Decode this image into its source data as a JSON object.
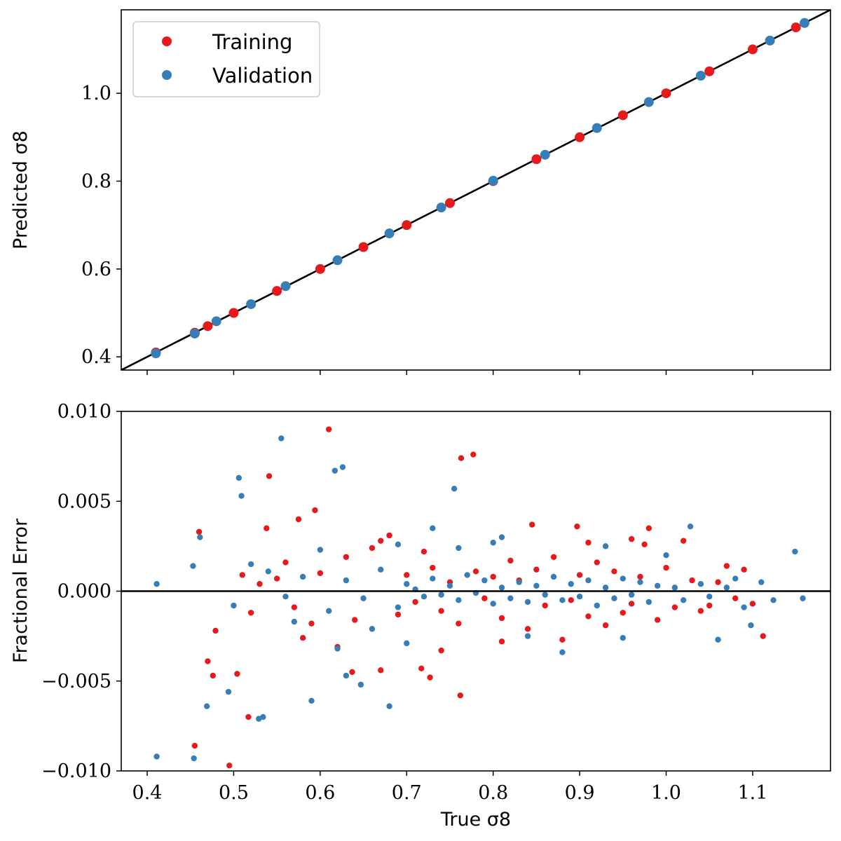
{
  "colors": {
    "training": "#e41a1c",
    "validation": "#377eb8",
    "reference": "#000000"
  },
  "legend": {
    "placement": "top-left",
    "entries": [
      "Training",
      "Validation"
    ]
  },
  "chart_data": [
    {
      "type": "scatter",
      "title": "",
      "ylabel": "Predicted σ8",
      "xlim": [
        0.37,
        1.19
      ],
      "ylim": [
        0.37,
        1.19
      ],
      "yticks": [
        0.4,
        0.6,
        0.8,
        1.0
      ],
      "ytick_labels": [
        "0.4",
        "0.6",
        "0.8",
        "1.0"
      ],
      "xticks": [
        0.4,
        0.5,
        0.6,
        0.7,
        0.8,
        0.9,
        1.0,
        1.1
      ],
      "reference_line": "y = x",
      "series": [
        {
          "name": "Training",
          "points": [
            [
              0.41,
              0.41
            ],
            [
              0.455,
              0.455
            ],
            [
              0.47,
              0.47
            ],
            [
              0.5,
              0.5
            ],
            [
              0.55,
              0.55
            ],
            [
              0.6,
              0.6
            ],
            [
              0.65,
              0.65
            ],
            [
              0.7,
              0.7
            ],
            [
              0.75,
              0.75
            ],
            [
              0.8,
              0.8
            ],
            [
              0.85,
              0.85
            ],
            [
              0.9,
              0.9
            ],
            [
              0.95,
              0.95
            ],
            [
              1.0,
              1.0
            ],
            [
              1.05,
              1.05
            ],
            [
              1.1,
              1.1
            ],
            [
              1.15,
              1.15
            ]
          ]
        },
        {
          "name": "Validation",
          "points": [
            [
              0.41,
              0.408
            ],
            [
              0.455,
              0.453
            ],
            [
              0.48,
              0.481
            ],
            [
              0.52,
              0.52
            ],
            [
              0.56,
              0.561
            ],
            [
              0.62,
              0.62
            ],
            [
              0.68,
              0.681
            ],
            [
              0.74,
              0.74
            ],
            [
              0.8,
              0.801
            ],
            [
              0.86,
              0.86
            ],
            [
              0.92,
              0.921
            ],
            [
              0.98,
              0.98
            ],
            [
              1.04,
              1.04
            ],
            [
              1.12,
              1.12
            ],
            [
              1.16,
              1.16
            ]
          ]
        }
      ]
    },
    {
      "type": "scatter",
      "title": "",
      "xlabel": "True σ8",
      "ylabel": "Fractional Error",
      "xlim": [
        0.37,
        1.19
      ],
      "ylim": [
        -0.01,
        0.01
      ],
      "xticks": [
        0.4,
        0.5,
        0.6,
        0.7,
        0.8,
        0.9,
        1.0,
        1.1
      ],
      "xtick_labels": [
        "0.4",
        "0.5",
        "0.6",
        "0.7",
        "0.8",
        "0.9",
        "1.0",
        "1.1"
      ],
      "yticks": [
        -0.01,
        -0.005,
        0.0,
        0.005,
        0.01
      ],
      "ytick_labels": [
        "−0.010",
        "−0.005",
        "0.000",
        "0.005",
        "0.010"
      ],
      "reference_line": "y = 0",
      "series": [
        {
          "name": "Training",
          "points": [
            [
              0.61,
              0.009
            ],
            [
              0.763,
              0.0074
            ],
            [
              0.777,
              0.0076
            ],
            [
              0.541,
              0.0064
            ],
            [
              0.46,
              0.0033
            ],
            [
              0.495,
              -0.0097
            ],
            [
              0.455,
              -0.0086
            ],
            [
              0.517,
              -0.007
            ],
            [
              0.476,
              -0.0047
            ],
            [
              0.762,
              -0.0058
            ],
            [
              0.504,
              -0.0046
            ],
            [
              0.47,
              -0.0039
            ],
            [
              0.479,
              -0.0022
            ],
            [
              0.538,
              0.0035
            ],
            [
              0.575,
              0.004
            ],
            [
              0.594,
              0.0045
            ],
            [
              0.637,
              -0.0045
            ],
            [
              0.67,
              -0.0044
            ],
            [
              0.717,
              -0.0043
            ],
            [
              0.727,
              -0.0048
            ],
            [
              0.845,
              0.0037
            ],
            [
              0.897,
              0.0036
            ],
            [
              0.975,
              0.0026
            ],
            [
              1.05,
              -0.0008
            ],
            [
              1.112,
              -0.0025
            ],
            [
              1.07,
              0.0014
            ],
            [
              1.02,
              0.0028
            ],
            [
              0.95,
              -0.0012
            ],
            [
              0.88,
              -0.0027
            ],
            [
              0.82,
              0.0017
            ],
            [
              0.72,
              0.0022
            ],
            [
              0.67,
              0.0028
            ],
            [
              0.64,
              -0.0016
            ],
            [
              0.6,
              0.001
            ],
            [
              0.57,
              -0.0009
            ],
            [
              0.55,
              0.0007
            ],
            [
              0.52,
              -0.0012
            ],
            [
              0.53,
              0.0004
            ],
            [
              0.58,
              -0.0026
            ],
            [
              0.62,
              -0.0031
            ],
            [
              0.66,
              0.0024
            ],
            [
              0.69,
              -0.0013
            ],
            [
              0.7,
              0.0009
            ],
            [
              0.71,
              -0.0006
            ],
            [
              0.73,
              0.0013
            ],
            [
              0.74,
              -0.0011
            ],
            [
              0.75,
              0.0005
            ],
            [
              0.76,
              -0.0018
            ],
            [
              0.78,
              0.0011
            ],
            [
              0.79,
              -0.0004
            ],
            [
              0.8,
              0.0008
            ],
            [
              0.81,
              -0.0015
            ],
            [
              0.83,
              0.0006
            ],
            [
              0.84,
              -0.0021
            ],
            [
              0.85,
              0.0012
            ],
            [
              0.86,
              -0.0008
            ],
            [
              0.87,
              0.0019
            ],
            [
              0.89,
              -0.0005
            ],
            [
              0.9,
              0.0009
            ],
            [
              0.91,
              -0.0014
            ],
            [
              0.92,
              0.0016
            ],
            [
              0.93,
              -0.0019
            ],
            [
              0.94,
              0.0011
            ],
            [
              0.96,
              -0.0007
            ],
            [
              0.97,
              0.0008
            ],
            [
              0.99,
              -0.0016
            ],
            [
              1.0,
              0.0013
            ],
            [
              1.01,
              -0.0009
            ],
            [
              1.03,
              0.0006
            ],
            [
              1.04,
              -0.0011
            ],
            [
              1.06,
              0.0005
            ],
            [
              1.08,
              -0.0004
            ],
            [
              1.09,
              0.0012
            ],
            [
              1.1,
              -0.0007
            ],
            [
              0.98,
              0.0035
            ],
            [
              0.96,
              0.0029
            ],
            [
              0.91,
              0.0027
            ],
            [
              0.81,
              -0.0028
            ],
            [
              0.74,
              -0.0033
            ],
            [
              0.68,
              0.0031
            ],
            [
              0.63,
              0.0019
            ],
            [
              0.59,
              -0.0018
            ],
            [
              0.56,
              0.0016
            ],
            [
              0.51,
              0.0009
            ]
          ]
        },
        {
          "name": "Validation",
          "points": [
            [
              0.555,
              0.0085
            ],
            [
              0.626,
              0.0069
            ],
            [
              0.617,
              0.0067
            ],
            [
              0.755,
              0.0057
            ],
            [
              0.506,
              0.0063
            ],
            [
              0.509,
              0.0053
            ],
            [
              0.411,
              0.0004
            ],
            [
              0.453,
              0.0014
            ],
            [
              0.461,
              0.003
            ],
            [
              0.411,
              -0.0092
            ],
            [
              0.454,
              -0.0093
            ],
            [
              0.469,
              -0.0064
            ],
            [
              0.494,
              -0.0056
            ],
            [
              0.529,
              -0.0071
            ],
            [
              0.534,
              -0.007
            ],
            [
              0.59,
              -0.0061
            ],
            [
              0.68,
              -0.0064
            ],
            [
              0.647,
              -0.0052
            ],
            [
              0.63,
              -0.0047
            ],
            [
              1.149,
              0.0022
            ],
            [
              1.158,
              -0.0004
            ],
            [
              1.124,
              -0.0005
            ],
            [
              1.098,
              -0.0019
            ],
            [
              1.06,
              -0.0027
            ],
            [
              1.028,
              0.0036
            ],
            [
              1.0,
              0.002
            ],
            [
              0.95,
              -0.0026
            ],
            [
              0.88,
              -0.0034
            ],
            [
              0.81,
              0.003
            ],
            [
              0.73,
              0.0035
            ],
            [
              0.66,
              -0.0021
            ],
            [
              0.6,
              0.0023
            ],
            [
              0.57,
              -0.0017
            ],
            [
              0.54,
              0.0011
            ],
            [
              0.5,
              -0.0008
            ],
            [
              0.52,
              0.0015
            ],
            [
              0.56,
              -0.0003
            ],
            [
              0.58,
              0.0008
            ],
            [
              0.61,
              -0.0011
            ],
            [
              0.63,
              0.0006
            ],
            [
              0.65,
              -0.0004
            ],
            [
              0.67,
              0.0012
            ],
            [
              0.69,
              -0.0009
            ],
            [
              0.7,
              0.0004
            ],
            [
              0.71,
              0.0001
            ],
            [
              0.72,
              -0.0003
            ],
            [
              0.73,
              0.0007
            ],
            [
              0.74,
              -0.0002
            ],
            [
              0.75,
              0.0003
            ],
            [
              0.76,
              -0.0005
            ],
            [
              0.77,
              0.0009
            ],
            [
              0.78,
              -0.0001
            ],
            [
              0.79,
              0.0006
            ],
            [
              0.8,
              -0.0007
            ],
            [
              0.81,
              0.0002
            ],
            [
              0.82,
              -0.0004
            ],
            [
              0.83,
              0.0005
            ],
            [
              0.84,
              -0.0006
            ],
            [
              0.85,
              0.0003
            ],
            [
              0.86,
              -0.0002
            ],
            [
              0.87,
              0.0008
            ],
            [
              0.88,
              -0.0005
            ],
            [
              0.89,
              0.0004
            ],
            [
              0.9,
              -0.0003
            ],
            [
              0.91,
              0.0006
            ],
            [
              0.92,
              -0.0008
            ],
            [
              0.93,
              0.0002
            ],
            [
              0.94,
              -0.0004
            ],
            [
              0.95,
              0.0007
            ],
            [
              0.96,
              -0.0002
            ],
            [
              0.97,
              0.0005
            ],
            [
              0.98,
              -0.0006
            ],
            [
              0.99,
              0.0003
            ],
            [
              1.01,
              0.0002
            ],
            [
              1.02,
              -0.0005
            ],
            [
              1.04,
              0.0004
            ],
            [
              1.05,
              -0.0003
            ],
            [
              1.07,
              0.0002
            ],
            [
              1.08,
              0.0007
            ],
            [
              1.09,
              -0.0009
            ],
            [
              1.11,
              0.0005
            ],
            [
              0.69,
              0.0026
            ],
            [
              0.76,
              0.0024
            ],
            [
              0.84,
              -0.0025
            ],
            [
              0.93,
              0.0025
            ],
            [
              0.62,
              -0.0032
            ],
            [
              0.7,
              -0.0029
            ],
            [
              0.8,
              0.0027
            ]
          ]
        }
      ]
    }
  ]
}
